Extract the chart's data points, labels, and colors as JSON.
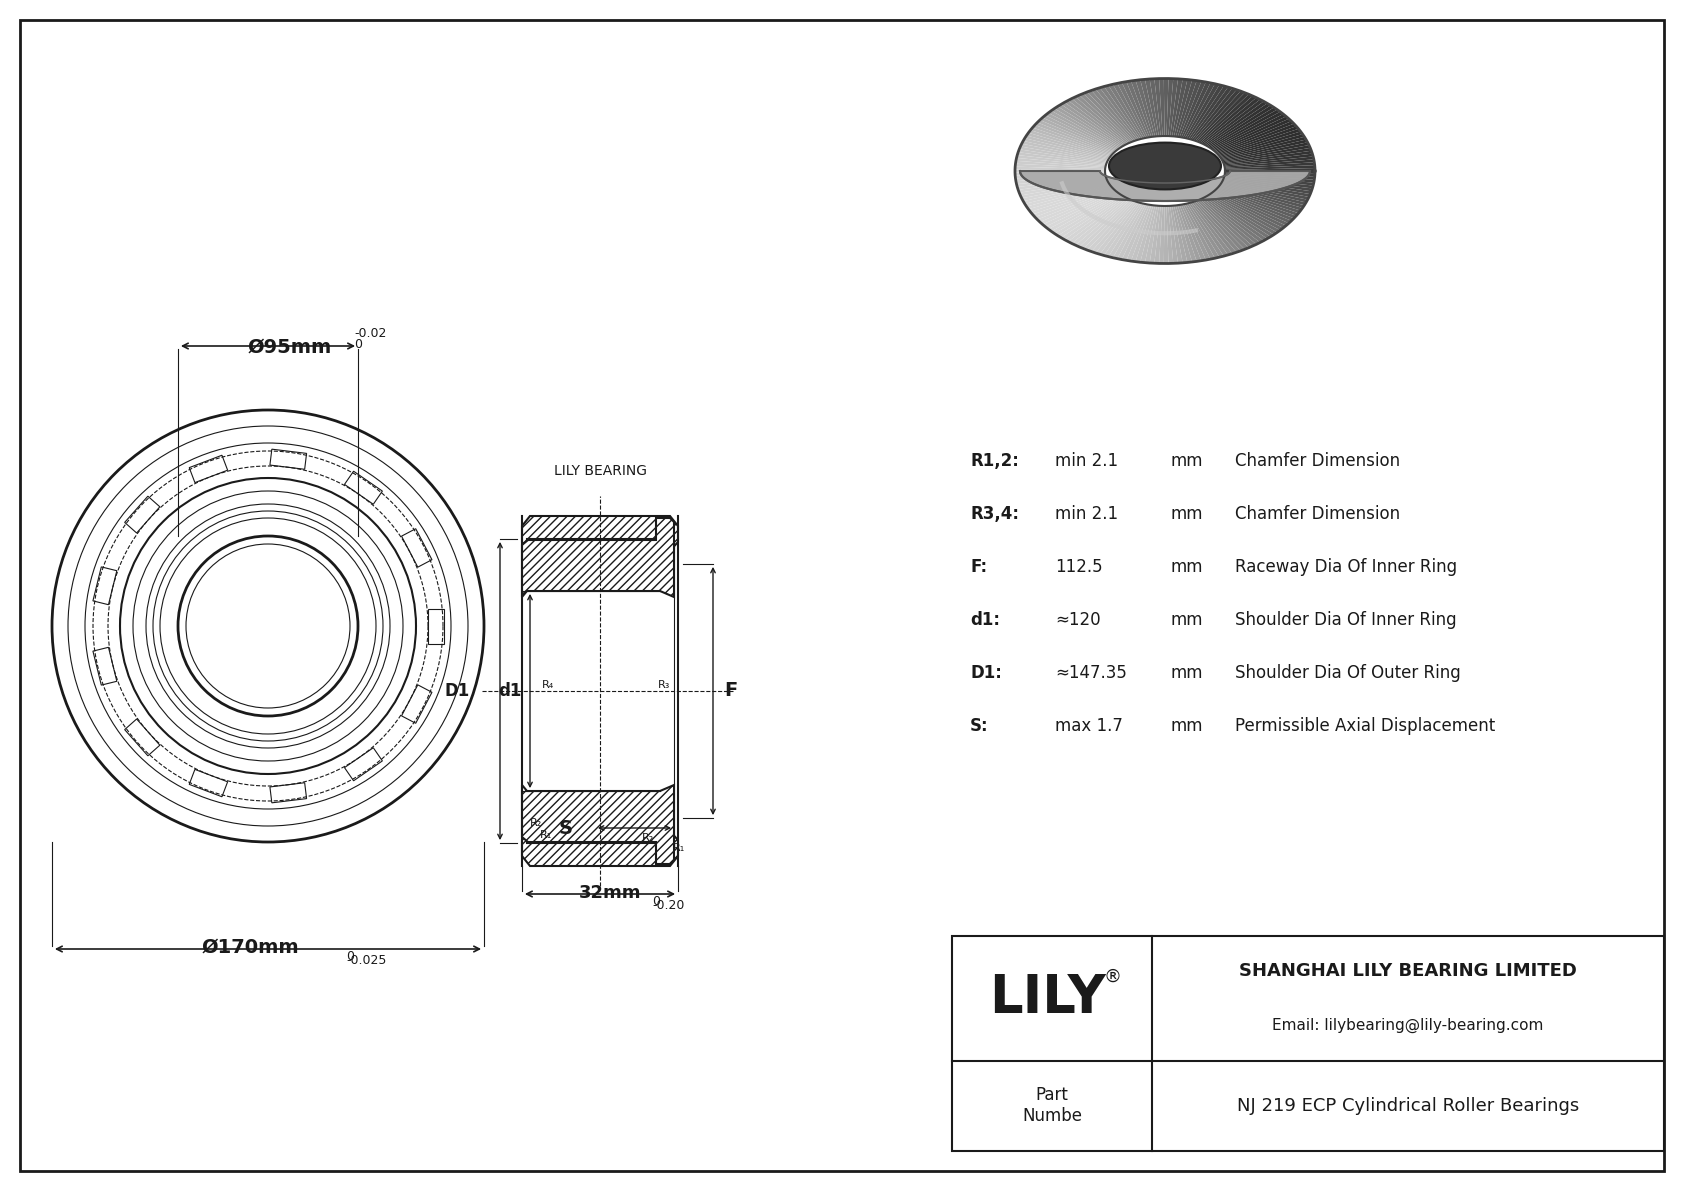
{
  "bg_color": "#ffffff",
  "drawing_color": "#1a1a1a",
  "dim_170_main": "Ø170mm",
  "dim_170_sup": "0",
  "dim_170_sub": "-0.025",
  "dim_95_main": "Ø95mm",
  "dim_95_sup": "0",
  "dim_95_sub": "-0.02",
  "dim_32_main": "32mm",
  "dim_32_sup": "0",
  "dim_32_sub": "-0.20",
  "params": [
    {
      "label": "R1,2:",
      "value": "min 2.1",
      "unit": "mm",
      "desc": "Chamfer Dimension"
    },
    {
      "label": "R3,4:",
      "value": "min 2.1",
      "unit": "mm",
      "desc": "Chamfer Dimension"
    },
    {
      "label": "F:",
      "value": "112.5",
      "unit": "mm",
      "desc": "Raceway Dia Of Inner Ring"
    },
    {
      "label": "d1:",
      "value": "≈120",
      "unit": "mm",
      "desc": "Shoulder Dia Of Inner Ring"
    },
    {
      "label": "D1:",
      "value": "≈147.35",
      "unit": "mm",
      "desc": "Shoulder Dia Of Outer Ring"
    },
    {
      "label": "S:",
      "value": "max 1.7",
      "unit": "mm",
      "desc": "Permissible Axial Displacement"
    }
  ],
  "lily_brand": "LILY",
  "lily_reg": "®",
  "company_name": "SHANGHAI LILY BEARING LIMITED",
  "email": "Email: lilybearing@lily-bearing.com",
  "part_label": "Part\nNumbe",
  "part_number": "NJ 219 ECP Cylindrical Roller Bearings",
  "lily_bearing_label": "LILY BEARING"
}
